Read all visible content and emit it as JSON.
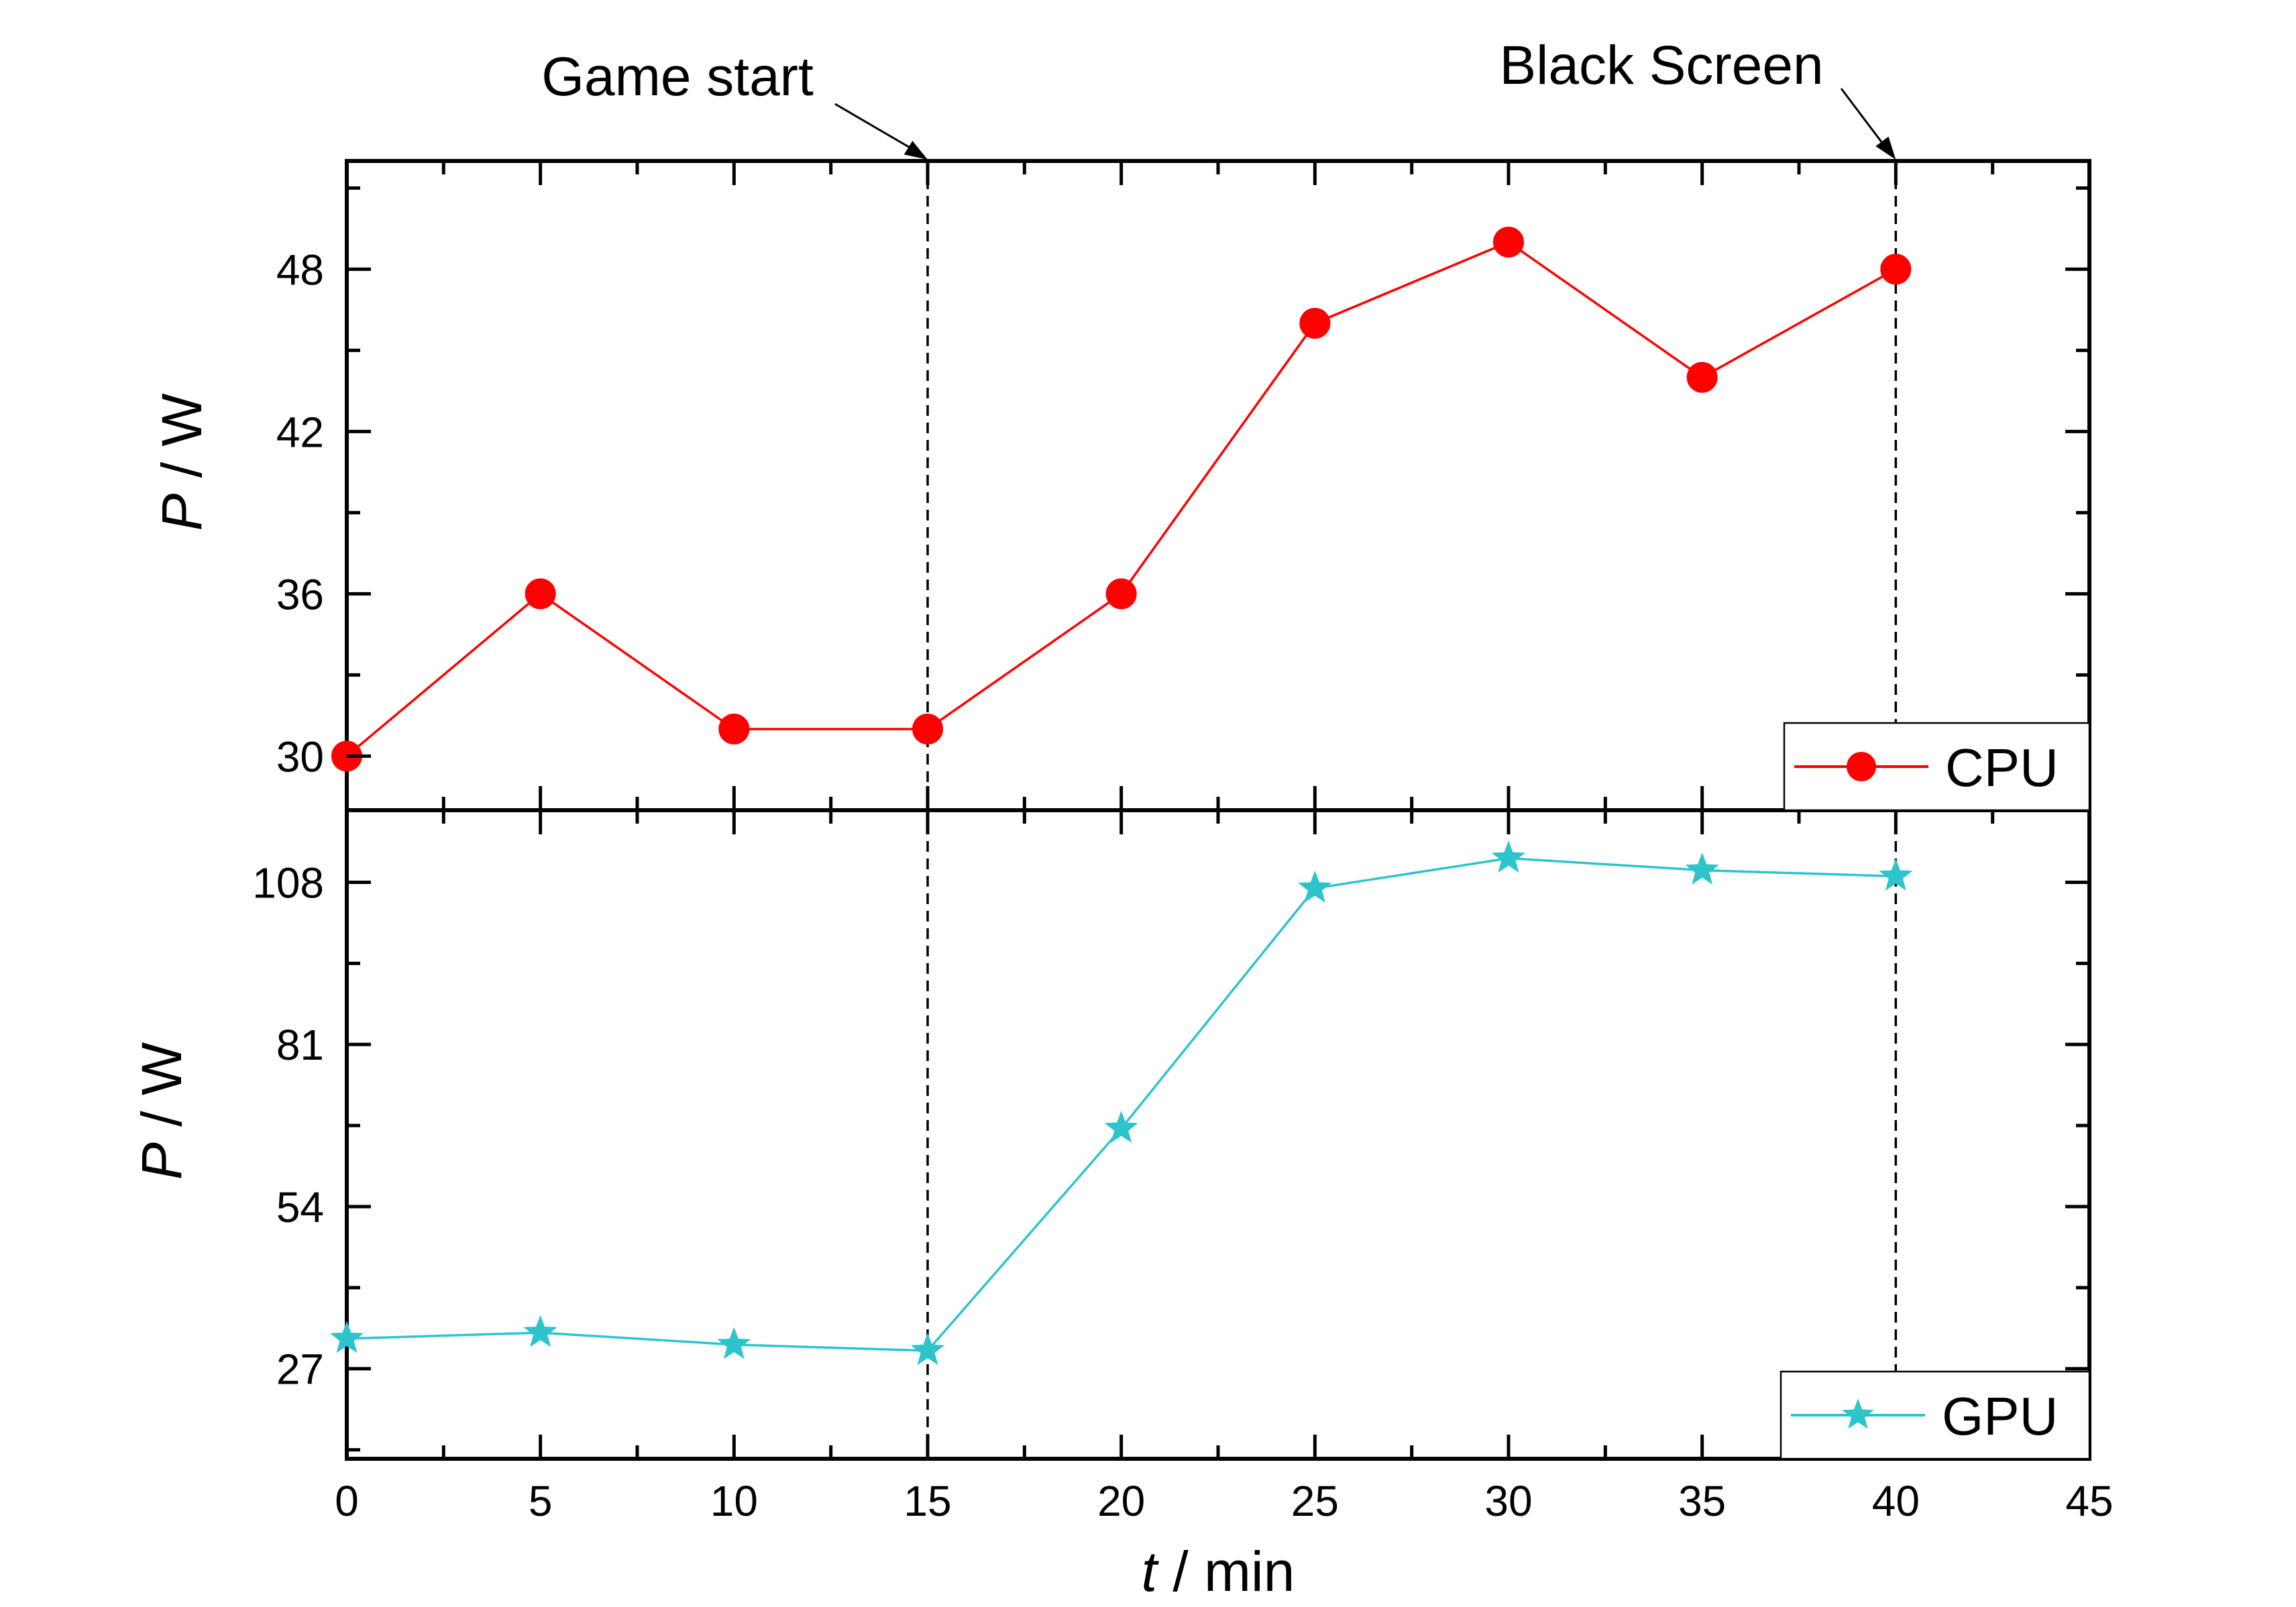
{
  "chart_data": [
    {
      "type": "line",
      "panel": "top",
      "title": "",
      "xlabel": "t / min",
      "ylabel": "P / W",
      "ylabel_var": "P",
      "ylabel_unit": " / W",
      "xlim": [
        0,
        45
      ],
      "ylim": [
        28,
        52
      ],
      "yticks": [
        30,
        36,
        42,
        48
      ],
      "legend_position": "bottom-right",
      "series": [
        {
          "name": "CPU",
          "color": "#ff0000",
          "marker": "circle",
          "x": [
            0,
            5,
            10,
            15,
            20,
            25,
            30,
            35,
            40
          ],
          "y": [
            30,
            36,
            31,
            31,
            36,
            46,
            49,
            44,
            48
          ]
        }
      ]
    },
    {
      "type": "line",
      "panel": "bottom",
      "title": "",
      "xlabel": "t / min",
      "xlabel_var": "t",
      "xlabel_unit": " / min",
      "ylabel": "P / W",
      "ylabel_var": "P",
      "ylabel_unit": " / W",
      "xlim": [
        0,
        45
      ],
      "ylim": [
        12,
        120
      ],
      "xticks": [
        0,
        5,
        10,
        15,
        20,
        25,
        30,
        35,
        40,
        45
      ],
      "yticks": [
        27,
        54,
        81,
        108
      ],
      "legend_position": "bottom-right",
      "series": [
        {
          "name": "GPU",
          "color": "#2ec4cc",
          "marker": "star",
          "x": [
            0,
            5,
            10,
            15,
            20,
            25,
            30,
            35,
            40
          ],
          "y": [
            32,
            33,
            31,
            30,
            67,
            107,
            112,
            110,
            109
          ]
        }
      ]
    }
  ],
  "annotations": [
    {
      "label": "Game start",
      "x": 15
    },
    {
      "label": "Black Screen",
      "x": 40
    }
  ]
}
